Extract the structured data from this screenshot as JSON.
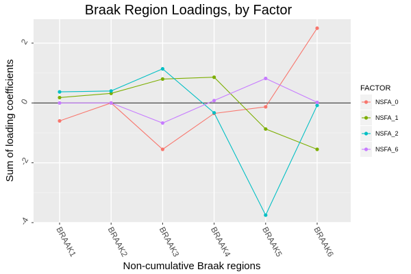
{
  "chart_data": {
    "type": "line",
    "title": "Braak Region Loadings, by Factor",
    "xlabel": "Non-cumulative Braak regions",
    "ylabel": "Sum of loading coefficients",
    "categories": [
      "BRAAK1",
      "BRAAK2",
      "BRAAK3",
      "BRAAK4",
      "BRAAK5",
      "BRAAK6"
    ],
    "y_ticks": [
      -4,
      -2,
      0,
      2
    ],
    "y_tick_labels": [
      "-4",
      "-2",
      "0",
      "2"
    ],
    "ylim": [
      -4.0,
      2.8
    ],
    "reference_line_y": 0,
    "grid": true,
    "legend": {
      "title": "FACTOR",
      "position": "right"
    },
    "series": [
      {
        "name": "NSFA_0",
        "color": "#F8766D",
        "values": [
          -0.6,
          0.0,
          -1.55,
          -0.35,
          -0.13,
          2.5
        ]
      },
      {
        "name": "NSFA_1",
        "color": "#7CAE00",
        "values": [
          0.18,
          0.32,
          0.8,
          0.86,
          -0.87,
          -1.55
        ]
      },
      {
        "name": "NSFA_2",
        "color": "#00BFC4",
        "values": [
          0.37,
          0.4,
          1.14,
          -0.33,
          -3.75,
          -0.08
        ]
      },
      {
        "name": "NSFA_6",
        "color": "#C77CFF",
        "values": [
          0.0,
          0.0,
          -0.67,
          0.08,
          0.82,
          0.02
        ]
      }
    ]
  }
}
